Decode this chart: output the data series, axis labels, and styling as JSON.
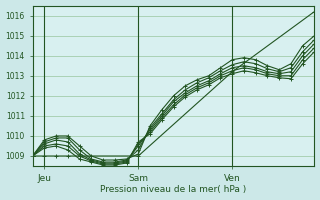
{
  "bg_color": "#cce8e8",
  "plot_bg_color": "#d8f0f0",
  "grid_color": "#88bb88",
  "line_color": "#225522",
  "title": "Pression niveau de la mer( hPa )",
  "ylabel_ticks": [
    1009,
    1010,
    1011,
    1012,
    1013,
    1014,
    1015,
    1016
  ],
  "ylim": [
    1008.5,
    1016.5
  ],
  "xlim": [
    0,
    48
  ],
  "x_ticks": [
    2,
    18,
    34
  ],
  "x_tick_labels": [
    "Jeu",
    "Sam",
    "Ven"
  ],
  "vlines_x": [
    2,
    18,
    34
  ],
  "series": [
    {
      "x": [
        0,
        2,
        4,
        6,
        8,
        10,
        12,
        14,
        16,
        18,
        20,
        22,
        24,
        26,
        28,
        30,
        32,
        34,
        36,
        38,
        40,
        42,
        44,
        46,
        48
      ],
      "y": [
        1009.0,
        1009.8,
        1010.0,
        1010.0,
        1009.5,
        1009.0,
        1008.8,
        1008.8,
        1008.85,
        1009.1,
        1010.5,
        1011.3,
        1012.0,
        1012.5,
        1012.8,
        1013.0,
        1013.4,
        1013.8,
        1013.9,
        1013.8,
        1013.5,
        1013.3,
        1013.6,
        1014.5,
        1015.0
      ]
    },
    {
      "x": [
        0,
        2,
        4,
        6,
        8,
        10,
        12,
        14,
        16,
        18,
        20,
        22,
        24,
        26,
        28,
        30,
        32,
        34,
        36,
        38,
        40,
        42,
        44,
        46,
        48
      ],
      "y": [
        1009.0,
        1009.7,
        1009.9,
        1009.9,
        1009.3,
        1008.85,
        1008.7,
        1008.7,
        1008.8,
        1009.3,
        1010.4,
        1011.1,
        1011.8,
        1012.3,
        1012.65,
        1012.9,
        1013.25,
        1013.55,
        1013.7,
        1013.6,
        1013.35,
        1013.2,
        1013.4,
        1014.2,
        1014.8
      ]
    },
    {
      "x": [
        0,
        2,
        4,
        6,
        8,
        10,
        12,
        14,
        16,
        18,
        20,
        22,
        24,
        26,
        28,
        30,
        32,
        34,
        36,
        38,
        40,
        42,
        44,
        46,
        48
      ],
      "y": [
        1009.0,
        1009.6,
        1009.8,
        1009.7,
        1009.1,
        1008.8,
        1008.65,
        1008.65,
        1008.75,
        1009.5,
        1010.3,
        1011.0,
        1011.7,
        1012.15,
        1012.5,
        1012.75,
        1013.1,
        1013.4,
        1013.5,
        1013.4,
        1013.2,
        1013.1,
        1013.2,
        1014.0,
        1014.6
      ]
    },
    {
      "x": [
        0,
        2,
        4,
        6,
        8,
        10,
        12,
        14,
        16,
        18,
        20,
        22,
        24,
        26,
        28,
        30,
        32,
        34,
        36,
        38,
        40,
        42,
        44,
        46,
        48
      ],
      "y": [
        1009.0,
        1009.5,
        1009.6,
        1009.5,
        1009.0,
        1008.75,
        1008.6,
        1008.6,
        1008.7,
        1009.6,
        1010.2,
        1010.9,
        1011.55,
        1012.05,
        1012.4,
        1012.65,
        1013.0,
        1013.25,
        1013.4,
        1013.3,
        1013.1,
        1013.0,
        1013.0,
        1013.8,
        1014.4
      ]
    },
    {
      "x": [
        0,
        2,
        4,
        6,
        8,
        10,
        12,
        14,
        16,
        18,
        20,
        22,
        24,
        26,
        28,
        30,
        32,
        34,
        36,
        38,
        40,
        42,
        44,
        46,
        48
      ],
      "y": [
        1009.0,
        1009.4,
        1009.5,
        1009.3,
        1008.85,
        1008.7,
        1008.55,
        1008.55,
        1008.65,
        1009.7,
        1010.1,
        1010.8,
        1011.45,
        1011.95,
        1012.3,
        1012.55,
        1012.9,
        1013.1,
        1013.25,
        1013.15,
        1013.0,
        1012.9,
        1012.85,
        1013.6,
        1014.2
      ]
    },
    {
      "x": [
        0,
        2,
        4,
        6,
        8,
        18,
        34,
        48
      ],
      "y": [
        1009.0,
        1009.0,
        1009.0,
        1009.0,
        1009.0,
        1009.0,
        1013.2,
        1016.2
      ]
    }
  ]
}
